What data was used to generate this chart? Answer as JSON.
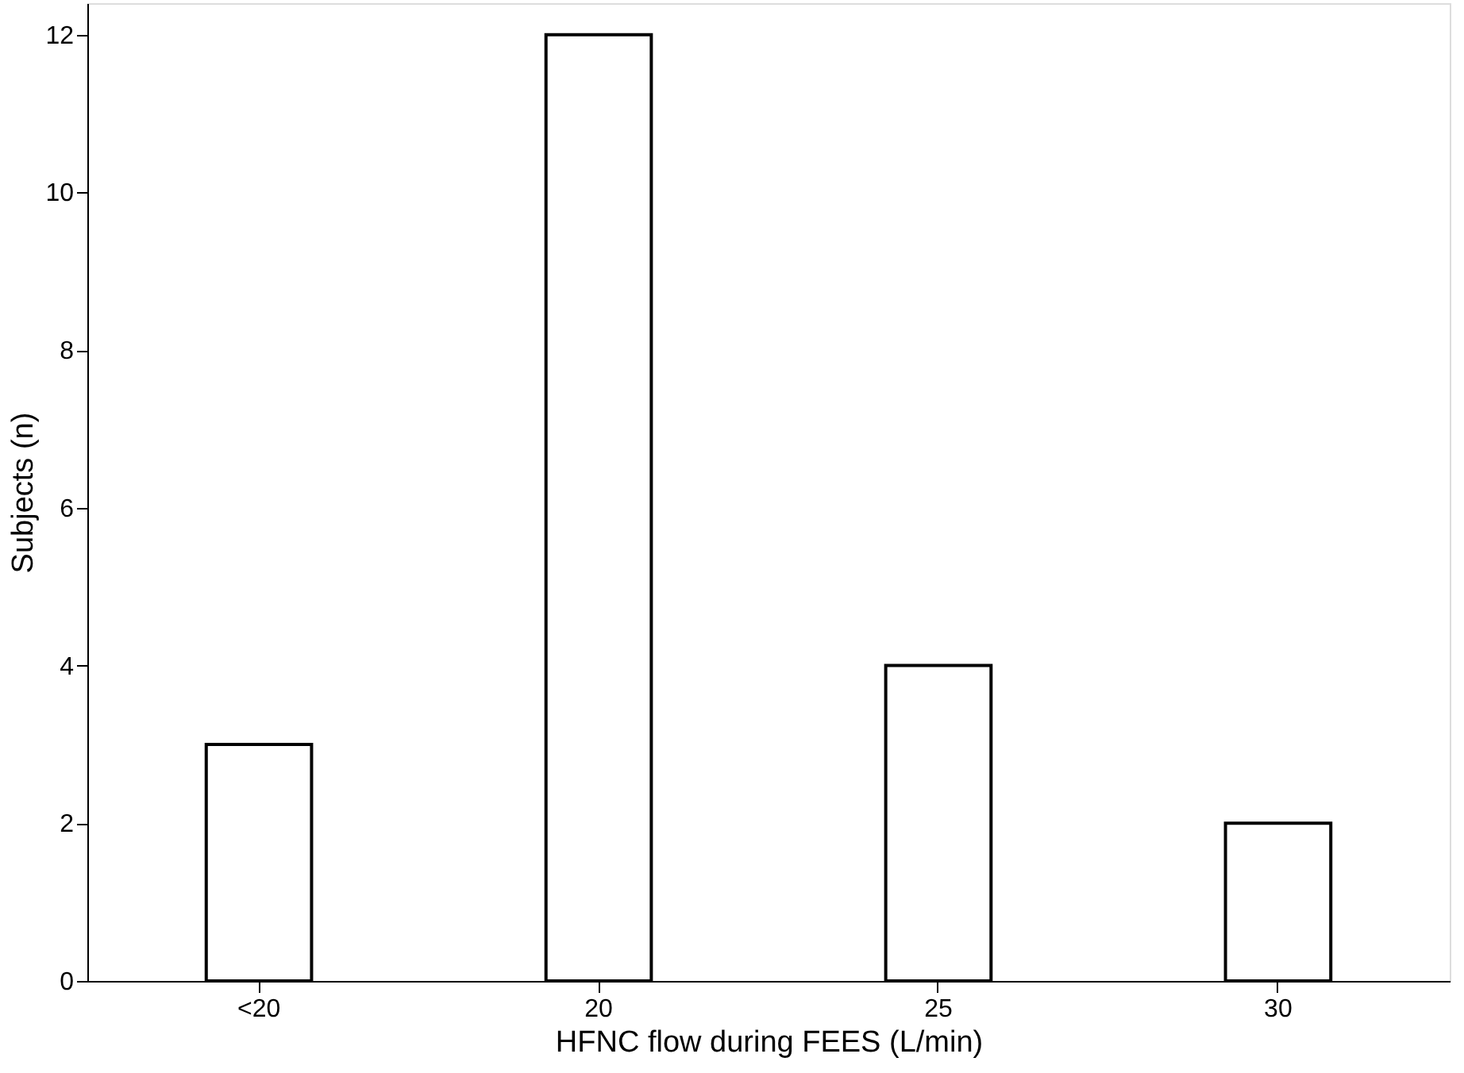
{
  "chart_data": {
    "type": "bar",
    "xlabel": "HFNC flow during FEES (L/min)",
    "ylabel": "Subjects (n)",
    "categories": [
      "<20",
      "20",
      "25",
      "30"
    ],
    "values": [
      3,
      12,
      4,
      2
    ],
    "color": "#ffffff",
    "ylim": [
      0,
      12.4
    ],
    "yticks": [
      0,
      2,
      4,
      6,
      8,
      10,
      12
    ],
    "grid": false
  }
}
